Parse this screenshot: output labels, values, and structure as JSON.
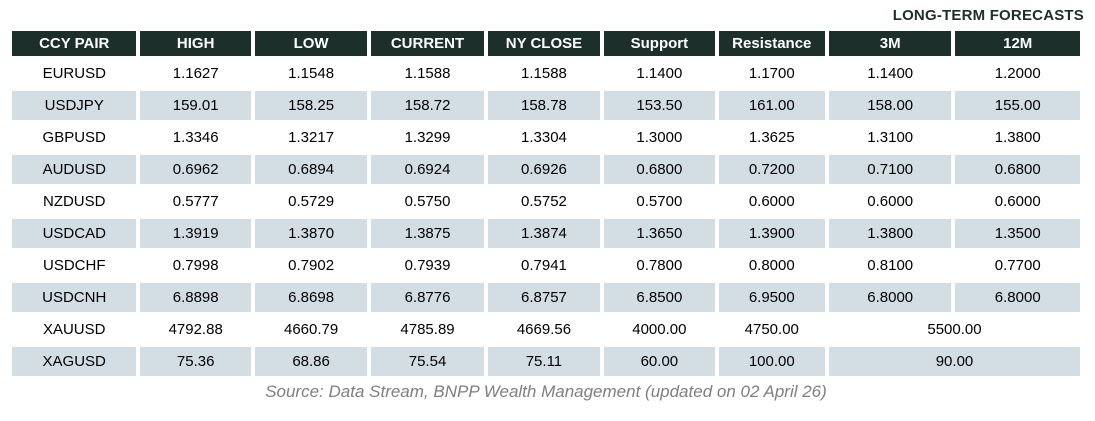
{
  "header": {
    "long_term_forecasts_label": "LONG-TERM FORECASTS"
  },
  "table": {
    "columns": [
      {
        "key": "pair",
        "label": "CCY PAIR"
      },
      {
        "key": "high",
        "label": "HIGH"
      },
      {
        "key": "low",
        "label": "LOW"
      },
      {
        "key": "current",
        "label": "CURRENT"
      },
      {
        "key": "ny_close",
        "label": "NY CLOSE"
      },
      {
        "key": "support",
        "label": "Support"
      },
      {
        "key": "resistance",
        "label": "Resistance"
      },
      {
        "key": "m3",
        "label": "3M"
      },
      {
        "key": "m12",
        "label": "12M"
      }
    ],
    "rows": [
      {
        "pair": "EURUSD",
        "high": "1.1627",
        "low": "1.1548",
        "current": "1.1588",
        "ny_close": "1.1588",
        "support": "1.1400",
        "resistance": "1.1700",
        "m3": "1.1400",
        "m12": "1.2000"
      },
      {
        "pair": "USDJPY",
        "high": "159.01",
        "low": "158.25",
        "current": "158.72",
        "ny_close": "158.78",
        "support": "153.50",
        "resistance": "161.00",
        "m3": "158.00",
        "m12": "155.00"
      },
      {
        "pair": "GBPUSD",
        "high": "1.3346",
        "low": "1.3217",
        "current": "1.3299",
        "ny_close": "1.3304",
        "support": "1.3000",
        "resistance": "1.3625",
        "m3": "1.3100",
        "m12": "1.3800"
      },
      {
        "pair": "AUDUSD",
        "high": "0.6962",
        "low": "0.6894",
        "current": "0.6924",
        "ny_close": "0.6926",
        "support": "0.6800",
        "resistance": "0.7200",
        "m3": "0.7100",
        "m12": "0.6800"
      },
      {
        "pair": "NZDUSD",
        "high": "0.5777",
        "low": "0.5729",
        "current": "0.5750",
        "ny_close": "0.5752",
        "support": "0.5700",
        "resistance": "0.6000",
        "m3": "0.6000",
        "m12": "0.6000"
      },
      {
        "pair": "USDCAD",
        "high": "1.3919",
        "low": "1.3870",
        "current": "1.3875",
        "ny_close": "1.3874",
        "support": "1.3650",
        "resistance": "1.3900",
        "m3": "1.3800",
        "m12": "1.3500"
      },
      {
        "pair": "USDCHF",
        "high": "0.7998",
        "low": "0.7902",
        "current": "0.7939",
        "ny_close": "0.7941",
        "support": "0.7800",
        "resistance": "0.8000",
        "m3": "0.8100",
        "m12": "0.7700"
      },
      {
        "pair": "USDCNH",
        "high": "6.8898",
        "low": "6.8698",
        "current": "6.8776",
        "ny_close": "6.8757",
        "support": "6.8500",
        "resistance": "6.9500",
        "m3": "6.8000",
        "m12": "6.8000"
      },
      {
        "pair": "XAUUSD",
        "high": "4792.88",
        "low": "4660.79",
        "current": "4785.89",
        "ny_close": "4669.56",
        "support": "4000.00",
        "resistance": "4750.00",
        "m3_12": "5500.00"
      },
      {
        "pair": "XAGUSD",
        "high": "75.36",
        "low": "68.86",
        "current": "75.54",
        "ny_close": "75.11",
        "support": "60.00",
        "resistance": "100.00",
        "m3_12": "90.00"
      }
    ]
  },
  "footer": {
    "source_text": "Source: Data Stream, BNPP Wealth Management (updated on 02 April 26)"
  },
  "colors": {
    "header_bg": "#1c2f2b",
    "header_text": "#ffffff",
    "alt_row_bg": "#d3dee4",
    "row_bg": "#ffffff",
    "body_text": "#000000",
    "caption_text": "#1c2f2b",
    "source_text": "#7f7f7f"
  }
}
